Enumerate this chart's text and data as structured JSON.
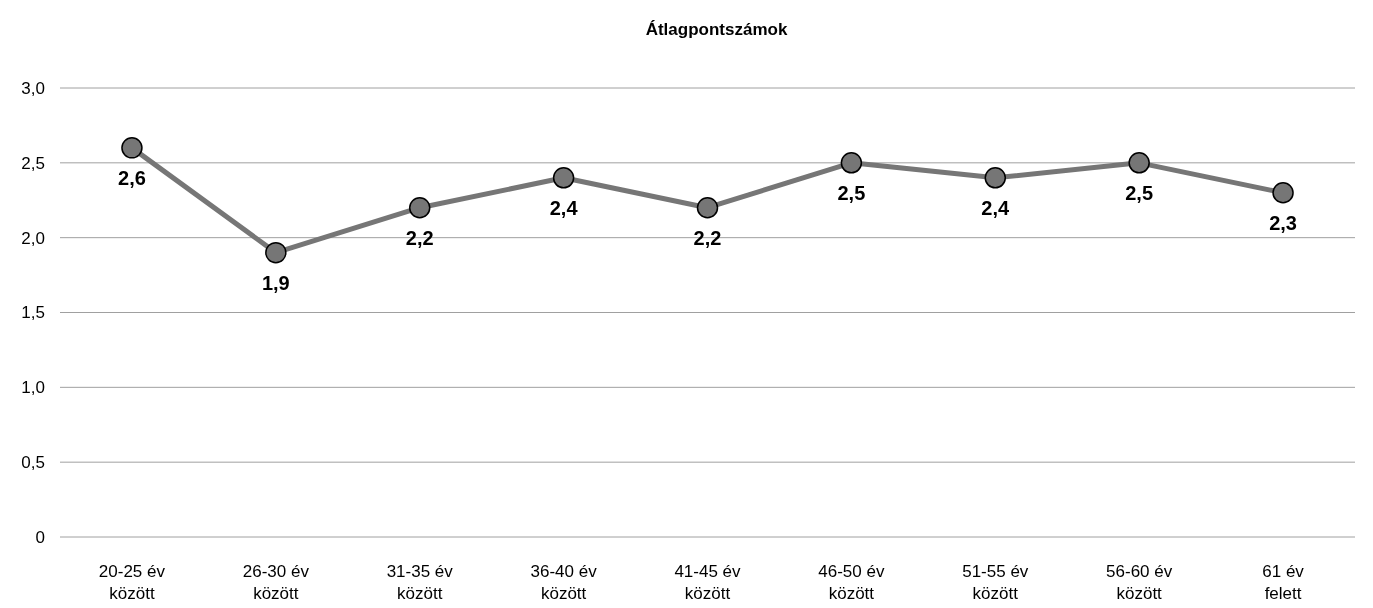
{
  "chart_data": {
    "type": "line",
    "title": "Átlagpontszámok",
    "categories": [
      "20-25 év között",
      "26-30 év között",
      "31-35 év között",
      "36-40 év között",
      "41-45 év között",
      "46-50 év között",
      "51-55 év között",
      "56-60 év között",
      "61 év felett"
    ],
    "series": [
      {
        "color": "#767676",
        "values": [
          2.6,
          1.9,
          2.2,
          2.4,
          2.2,
          2.5,
          2.4,
          2.5,
          2.3
        ],
        "value_labels": [
          "2,6",
          "1,9",
          "2,2",
          "2,4",
          "2,2",
          "2,5",
          "2,4",
          "2,5",
          "2,3"
        ]
      }
    ],
    "ylim": [
      0,
      3
    ],
    "yticks": [
      0,
      {
        "value": 0.5,
        "label": "0,5"
      },
      {
        "value": 1,
        "label": "1,0"
      },
      {
        "value": 1.5,
        "label": "1,5"
      },
      {
        "value": 2,
        "label": "2,0"
      },
      {
        "value": 2.5,
        "label": "2,5"
      },
      {
        "value": 3,
        "label": "3,0"
      }
    ],
    "grid": "y",
    "marker": "circle",
    "line_style": "solid"
  }
}
